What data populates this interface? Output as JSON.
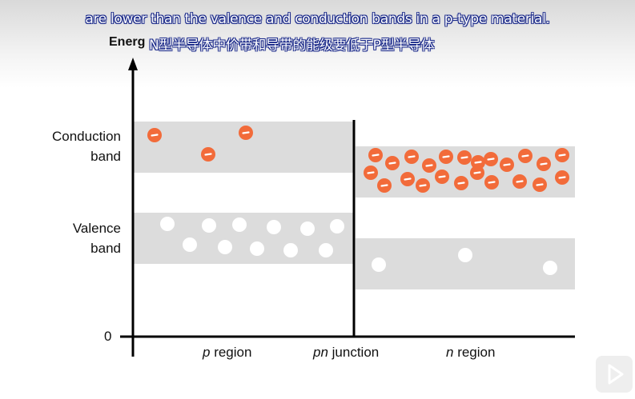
{
  "subtitles": {
    "english": "are lower than the valence and conduction bands in a p-type material.",
    "chinese": "N型半导体中价带和导带的能级要低于P型半导体"
  },
  "axis": {
    "y_label": "Energ",
    "zero_label": "0"
  },
  "bands": {
    "conduction_label": "Conduction\nband",
    "valence_label": "Valence\nband"
  },
  "regions": {
    "p_italic": "p",
    "p_rest": " region",
    "pn_italic": "pn",
    "pn_rest": " junction",
    "n_italic": "n",
    "n_rest": " region"
  },
  "colors": {
    "electron": "#f26b3a",
    "hole": "#ffffff",
    "band": "#dcdcdc",
    "axis": "#000000"
  },
  "icons": {
    "play": "play-icon"
  }
}
